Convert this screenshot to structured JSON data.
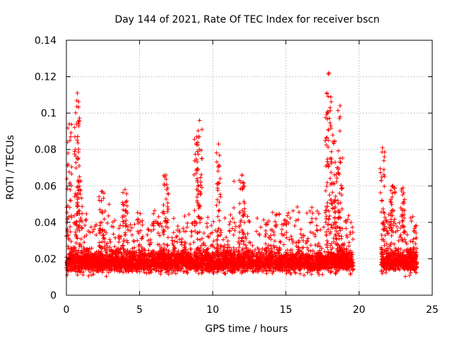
{
  "chart_data": {
    "type": "scatter",
    "title": "Day 144 of 2021, Rate Of TEC Index for receiver bscn",
    "xlabel": "GPS time / hours",
    "ylabel": "ROTI / TECUs",
    "xlim": [
      0,
      25
    ],
    "ylim": [
      0,
      0.14
    ],
    "xticks": [
      0,
      5,
      10,
      15,
      20,
      25
    ],
    "yticks": [
      0,
      0.02,
      0.04,
      0.06,
      0.08,
      0.1,
      0.12,
      0.14
    ],
    "xtick_labels": [
      "0",
      "5",
      "10",
      "15",
      "20",
      "25"
    ],
    "ytick_labels": [
      "0",
      "0.02",
      "0.04",
      "0.06",
      "0.08",
      "0.1",
      "0.12",
      "0.14"
    ],
    "grid": true,
    "marker": "plus",
    "color": "#ff0000",
    "data_gap_hours": [
      19.6,
      21.5
    ],
    "peaks": [
      {
        "x": 0.2,
        "y": 0.094
      },
      {
        "x": 0.75,
        "y": 0.111
      },
      {
        "x": 0.7,
        "y": 0.094
      },
      {
        "x": 0.9,
        "y": 0.065
      },
      {
        "x": 2.4,
        "y": 0.057
      },
      {
        "x": 4.0,
        "y": 0.058
      },
      {
        "x": 6.8,
        "y": 0.066
      },
      {
        "x": 8.9,
        "y": 0.087
      },
      {
        "x": 9.1,
        "y": 0.096
      },
      {
        "x": 10.4,
        "y": 0.083
      },
      {
        "x": 12.0,
        "y": 0.066
      },
      {
        "x": 17.8,
        "y": 0.111
      },
      {
        "x": 17.95,
        "y": 0.122
      },
      {
        "x": 18.2,
        "y": 0.088
      },
      {
        "x": 18.7,
        "y": 0.104
      },
      {
        "x": 18.5,
        "y": 0.07
      },
      {
        "x": 21.6,
        "y": 0.081
      },
      {
        "x": 22.3,
        "y": 0.06
      },
      {
        "x": 23.0,
        "y": 0.059
      }
    ]
  }
}
